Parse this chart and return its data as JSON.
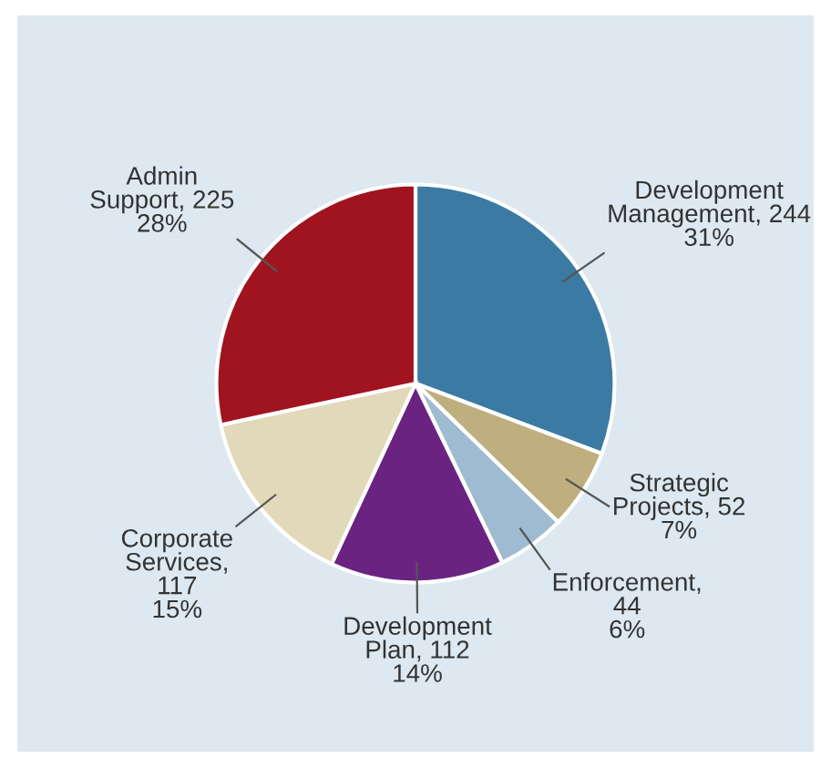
{
  "chart_data": {
    "type": "pie",
    "categories": [
      "Development\nManagement, 244\n31%",
      "Strategic\nProjects, 52\n7%",
      "Enforcement,\n44\n6%",
      "Development\nPlan, 112\n14%",
      "Corporate\nServices,\n117\n15%",
      "Admin\nSupport, 225\n28%"
    ],
    "values": [
      244,
      52,
      44,
      112,
      117,
      225
    ],
    "colors": [
      "#3b7ba3",
      "#bfae7e",
      "#9fbbd1",
      "#6b2382",
      "#e1d9ba",
      "#a0141f"
    ]
  }
}
